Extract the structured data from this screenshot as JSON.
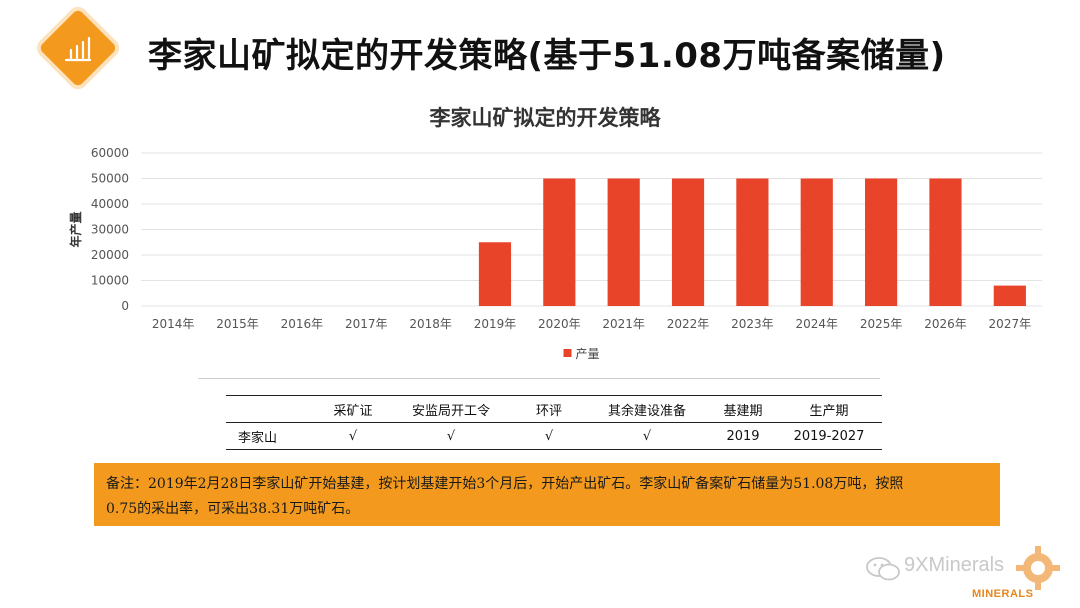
{
  "header": {
    "title": "李家山矿拟定的开发策略(基于51.08万吨备案储量)",
    "badge_icon": "bar-chart-icon",
    "accent_color": "#f39a1e"
  },
  "chart_data": {
    "type": "bar",
    "title": "李家山矿拟定的开发策略",
    "xlabel": "",
    "ylabel": "年产量",
    "ylim": [
      0,
      60000
    ],
    "yticks": [
      0,
      10000,
      20000,
      30000,
      40000,
      50000,
      60000
    ],
    "categories": [
      "2014年",
      "2015年",
      "2016年",
      "2017年",
      "2018年",
      "2019年",
      "2020年",
      "2021年",
      "2022年",
      "2023年",
      "2024年",
      "2025年",
      "2026年",
      "2027年"
    ],
    "series": [
      {
        "name": "产量",
        "color": "#e8442a",
        "values": [
          0,
          0,
          0,
          0,
          0,
          25000,
          50000,
          50000,
          50000,
          50000,
          50000,
          50000,
          50000,
          8000
        ]
      }
    ],
    "grid": true,
    "legend": "bottom-center"
  },
  "table": {
    "headers": [
      "",
      "采矿证",
      "安监局开工令",
      "环评",
      "其余建设准备",
      "基建期",
      "生产期"
    ],
    "rows": [
      [
        "李家山",
        "√",
        "√",
        "√",
        "√",
        "2019",
        "2019-2027"
      ]
    ]
  },
  "note": {
    "line1": "备注：2019年2月28日李家山矿开始基建，按计划基建开始3个月后，开始产出矿石。李家山矿备案矿石储量为51.08万吨，按照",
    "line2": "0.75的采出率，可采出38.31万吨矿石。"
  },
  "watermark": {
    "text": "9XMinerals",
    "brand": "MINERALS",
    "chat_icon": "wechat-icon",
    "gear_icon": "gear-logo-icon"
  }
}
